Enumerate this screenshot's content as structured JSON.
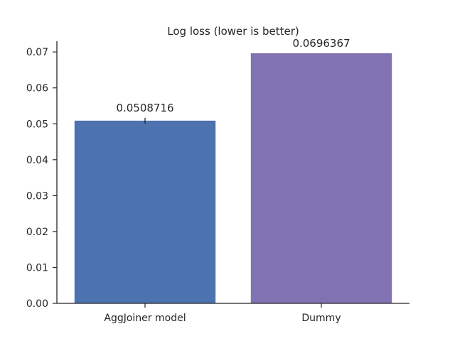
{
  "chart_data": {
    "type": "bar",
    "title": "Log loss (lower is better)",
    "xlabel": "",
    "ylabel": "",
    "categories": [
      "AggJoiner model",
      "Dummy"
    ],
    "values": [
      0.0508716,
      0.0696367
    ],
    "value_labels": [
      "0.0508716",
      "0.0696367"
    ],
    "error": [
      0.0008,
      0
    ],
    "colors": [
      "#4c72b0",
      "#8172b3"
    ],
    "ylim": [
      0,
      0.073
    ],
    "yticks": [
      0.0,
      0.01,
      0.02,
      0.03,
      0.04,
      0.05,
      0.06,
      0.07
    ],
    "ytick_labels": [
      "0.00",
      "0.01",
      "0.02",
      "0.03",
      "0.04",
      "0.05",
      "0.06",
      "0.07"
    ],
    "grid": false,
    "legend": "none"
  }
}
